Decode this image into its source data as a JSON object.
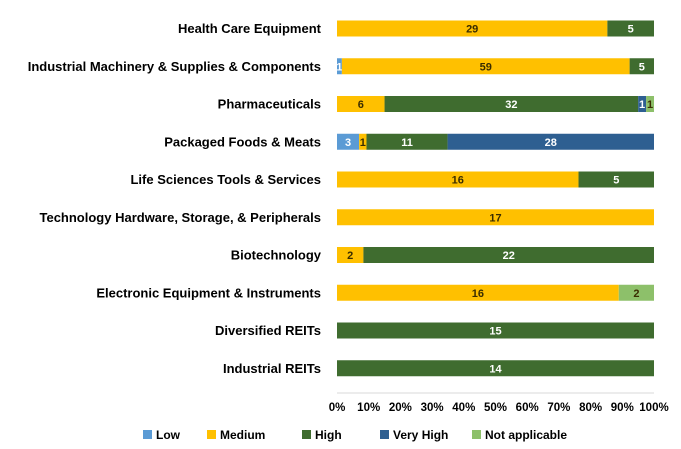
{
  "chart_data": {
    "type": "bar",
    "orientation": "horizontal",
    "stacking": "percent",
    "categories": [
      "Health Care Equipment",
      "Industrial Machinery & Supplies & Components",
      "Pharmaceuticals",
      "Packaged Foods & Meats",
      "Life Sciences Tools & Services",
      "Technology Hardware, Storage, & Peripherals",
      "Biotechnology",
      "Electronic Equipment & Instruments",
      "Diversified REITs",
      "Industrial REITs"
    ],
    "series": [
      {
        "name": "Low",
        "color": "#5b9bd5",
        "values": [
          0,
          1,
          0,
          3,
          0,
          0,
          0,
          0,
          0,
          0
        ]
      },
      {
        "name": "Medium",
        "color": "#ffc000",
        "values": [
          29,
          59,
          6,
          1,
          16,
          17,
          2,
          16,
          0,
          0
        ]
      },
      {
        "name": "High",
        "color": "#3f6c2f",
        "values": [
          5,
          5,
          32,
          11,
          5,
          0,
          22,
          0,
          15,
          14
        ]
      },
      {
        "name": "Very High",
        "color": "#2e5f91",
        "values": [
          0,
          0,
          1,
          28,
          0,
          0,
          0,
          0,
          0,
          0
        ]
      },
      {
        "name": "Not applicable",
        "color": "#8dc06a",
        "values": [
          0,
          0,
          1,
          0,
          0,
          0,
          0,
          2,
          0,
          0
        ]
      }
    ],
    "xaxis": {
      "ticks": [
        "0%",
        "10%",
        "20%",
        "30%",
        "40%",
        "50%",
        "60%",
        "70%",
        "80%",
        "90%",
        "100%"
      ],
      "range": [
        0,
        100
      ]
    },
    "legend": {
      "position": "bottom"
    },
    "grid": false
  }
}
